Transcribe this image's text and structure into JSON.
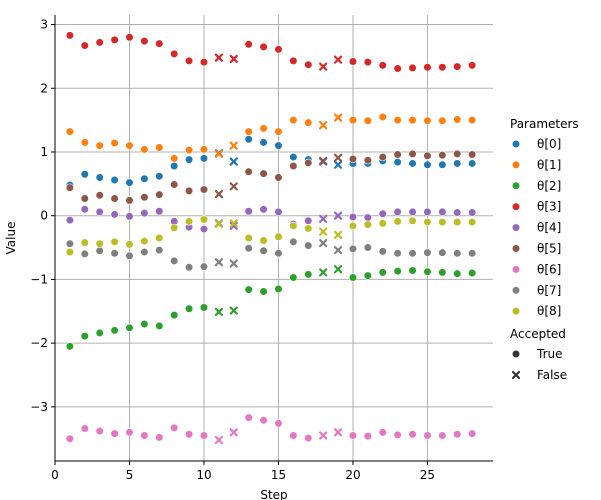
{
  "chart_data": {
    "type": "scatter",
    "xlabel": "Step",
    "ylabel": "Value",
    "xlim": [
      0,
      29.4
    ],
    "ylim": [
      -3.85,
      3.15
    ],
    "xticks": [
      0,
      5,
      10,
      15,
      20,
      25
    ],
    "yticks": [
      -3,
      -2,
      -1,
      0,
      1,
      2,
      3
    ],
    "grid": true,
    "legend": {
      "position": "right",
      "hue_title": "Parameters",
      "style_title": "Accepted",
      "style_items": [
        {
          "label": "True",
          "marker": "circle"
        },
        {
          "label": "False",
          "marker": "x"
        }
      ]
    },
    "x": [
      1,
      2,
      3,
      4,
      5,
      6,
      7,
      8,
      9,
      10,
      11,
      12,
      13,
      14,
      15,
      16,
      17,
      18,
      19,
      20,
      21,
      22,
      23,
      24,
      25,
      26,
      27,
      28
    ],
    "accepted": [
      true,
      true,
      true,
      true,
      true,
      true,
      true,
      true,
      true,
      true,
      false,
      false,
      true,
      true,
      true,
      true,
      true,
      false,
      false,
      true,
      true,
      true,
      true,
      true,
      true,
      true,
      true,
      true
    ],
    "series": [
      {
        "name": "θ[0]",
        "color": "#1f77b4",
        "values": [
          0.48,
          0.65,
          0.6,
          0.56,
          0.52,
          0.58,
          0.62,
          0.78,
          0.88,
          0.9,
          0.98,
          0.85,
          1.2,
          1.15,
          1.1,
          0.92,
          0.88,
          0.85,
          0.8,
          0.82,
          0.82,
          0.86,
          0.84,
          0.82,
          0.8,
          0.8,
          0.82,
          0.82
        ]
      },
      {
        "name": "θ[1]",
        "color": "#ff7f0e",
        "values": [
          1.32,
          1.15,
          1.1,
          1.14,
          1.1,
          1.04,
          1.07,
          0.9,
          1.03,
          1.04,
          0.97,
          1.1,
          1.32,
          1.37,
          1.32,
          1.5,
          1.46,
          1.42,
          1.54,
          1.5,
          1.49,
          1.55,
          1.5,
          1.5,
          1.49,
          1.49,
          1.51,
          1.5
        ]
      },
      {
        "name": "θ[2]",
        "color": "#2ca02c",
        "values": [
          -2.05,
          -1.89,
          -1.84,
          -1.8,
          -1.76,
          -1.7,
          -1.73,
          -1.56,
          -1.46,
          -1.44,
          -1.51,
          -1.49,
          -1.16,
          -1.19,
          -1.15,
          -0.97,
          -0.92,
          -0.89,
          -0.84,
          -0.97,
          -0.94,
          -0.89,
          -0.87,
          -0.86,
          -0.88,
          -0.89,
          -0.91,
          -0.9
        ]
      },
      {
        "name": "θ[3]",
        "color": "#d62728",
        "values": [
          2.83,
          2.67,
          2.72,
          2.76,
          2.8,
          2.74,
          2.7,
          2.54,
          2.43,
          2.41,
          2.48,
          2.46,
          2.69,
          2.65,
          2.61,
          2.43,
          2.37,
          2.34,
          2.45,
          2.42,
          2.41,
          2.36,
          2.31,
          2.32,
          2.33,
          2.33,
          2.34,
          2.36
        ]
      },
      {
        "name": "θ[4]",
        "color": "#9467bd",
        "values": [
          -0.07,
          0.1,
          0.06,
          0.02,
          -0.01,
          0.04,
          0.07,
          -0.09,
          -0.18,
          -0.21,
          -0.12,
          -0.16,
          0.07,
          0.1,
          0.06,
          -0.13,
          -0.08,
          -0.05,
          0.0,
          -0.02,
          -0.03,
          0.03,
          0.06,
          0.06,
          0.06,
          0.06,
          0.05,
          0.05
        ]
      },
      {
        "name": "θ[5]",
        "color": "#8c564b",
        "values": [
          0.44,
          0.27,
          0.32,
          0.27,
          0.24,
          0.29,
          0.33,
          0.49,
          0.39,
          0.41,
          0.34,
          0.46,
          0.69,
          0.66,
          0.6,
          0.78,
          0.83,
          0.86,
          0.91,
          0.89,
          0.87,
          0.92,
          0.96,
          0.97,
          0.94,
          0.95,
          0.97,
          0.96
        ]
      },
      {
        "name": "θ[6]",
        "color": "#e377c2",
        "values": [
          -3.5,
          -3.34,
          -3.38,
          -3.42,
          -3.4,
          -3.45,
          -3.48,
          -3.33,
          -3.43,
          -3.45,
          -3.52,
          -3.4,
          -3.17,
          -3.21,
          -3.26,
          -3.45,
          -3.49,
          -3.45,
          -3.4,
          -3.45,
          -3.46,
          -3.4,
          -3.44,
          -3.43,
          -3.45,
          -3.45,
          -3.43,
          -3.42
        ]
      },
      {
        "name": "θ[7]",
        "color": "#7f7f7f",
        "values": [
          -0.44,
          -0.6,
          -0.55,
          -0.59,
          -0.63,
          -0.57,
          -0.54,
          -0.71,
          -0.81,
          -0.8,
          -0.73,
          -0.75,
          -0.51,
          -0.55,
          -0.59,
          -0.41,
          -0.47,
          -0.43,
          -0.54,
          -0.52,
          -0.5,
          -0.56,
          -0.59,
          -0.59,
          -0.58,
          -0.58,
          -0.59,
          -0.59
        ]
      },
      {
        "name": "θ[8]",
        "color": "#bcbd22",
        "values": [
          -0.57,
          -0.42,
          -0.44,
          -0.41,
          -0.45,
          -0.4,
          -0.35,
          -0.19,
          -0.09,
          -0.06,
          -0.13,
          -0.12,
          -0.35,
          -0.39,
          -0.33,
          -0.16,
          -0.2,
          -0.25,
          -0.3,
          -0.16,
          -0.14,
          -0.12,
          -0.09,
          -0.08,
          -0.1,
          -0.1,
          -0.1,
          -0.1
        ]
      }
    ]
  }
}
